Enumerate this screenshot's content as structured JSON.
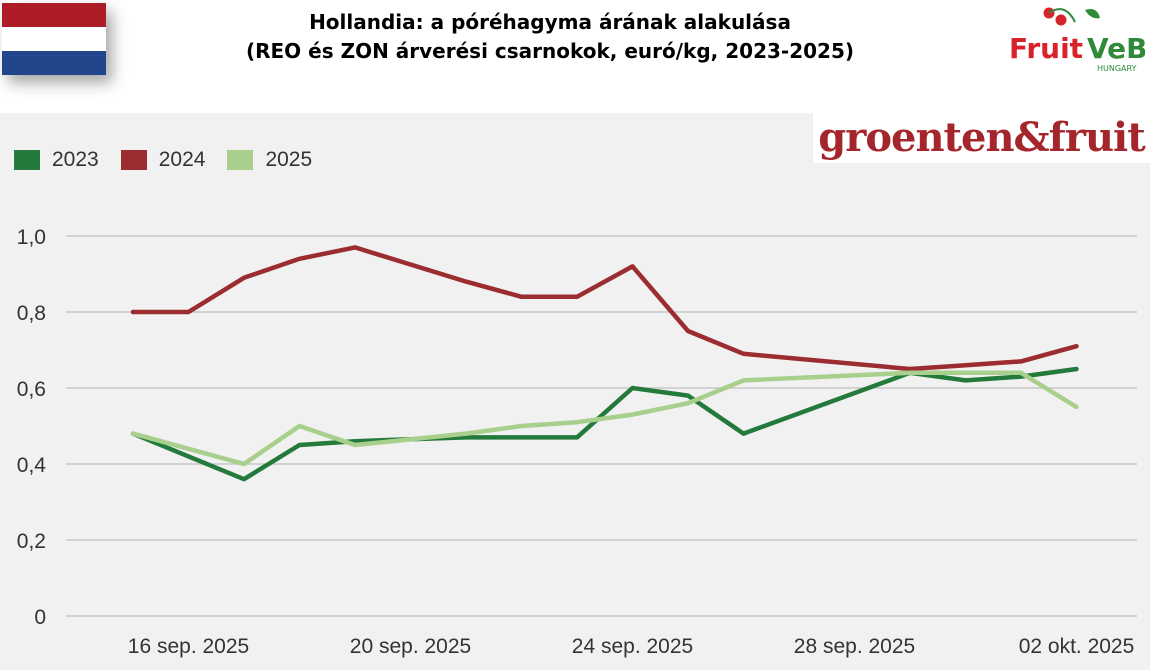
{
  "header": {
    "title_line1": "Hollandia: a póréhagyma árának alakulása",
    "title_line2": "(REO és ZON árverési csarnokok, euró/kg, 2023-2025)"
  },
  "logos": {
    "fruitveb": "FruitVeB",
    "fruitveb_sub": "HUNGARY",
    "groenten": "groenten&fruit"
  },
  "colors": {
    "y2023": "#237a3b",
    "y2024": "#9b2c2f",
    "y2025": "#a8cf8c",
    "flag_red": "#ae1c28",
    "flag_white": "#ffffff",
    "flag_blue": "#21468b"
  },
  "chart_data": {
    "type": "line",
    "title": "Hollandia: a póréhagyma árának alakulása",
    "subtitle": "(REO és ZON árverési csarnokok, euró/kg, 2023-2025)",
    "ylim": [
      0,
      1.0
    ],
    "yticks": [
      "0",
      "0,2",
      "0,4",
      "0,6",
      "0,8",
      "1,0"
    ],
    "ytick_values": [
      0,
      0.2,
      0.4,
      0.6,
      0.8,
      1.0
    ],
    "x": [
      "15 sep.",
      "16 sep.",
      "17 sep.",
      "18 sep.",
      "19 sep.",
      "21 sep.",
      "22 sep.",
      "23 sep.",
      "24 sep.",
      "25 sep.",
      "26 sep.",
      "29 sep.",
      "30 sep.",
      "01 okt.",
      "02 okt."
    ],
    "xtick_labels": [
      "16 sep. 2025",
      "20 sep. 2025",
      "24 sep. 2025",
      "28 sep. 2025",
      "02 okt. 2025"
    ],
    "legend_position": "top-left",
    "grid": true,
    "series": [
      {
        "name": "2023",
        "values": [
          0.48,
          0.42,
          0.36,
          0.45,
          0.46,
          0.47,
          0.47,
          0.47,
          0.6,
          0.58,
          0.48,
          0.64,
          0.62,
          0.63,
          0.65
        ]
      },
      {
        "name": "2024",
        "values": [
          0.8,
          0.8,
          0.89,
          0.94,
          0.97,
          0.88,
          0.84,
          0.84,
          0.92,
          0.75,
          0.69,
          0.65,
          0.66,
          0.67,
          0.71
        ]
      },
      {
        "name": "2025",
        "values": [
          0.48,
          0.44,
          0.4,
          0.5,
          0.45,
          0.48,
          0.5,
          0.51,
          0.53,
          0.56,
          0.62,
          0.64,
          0.64,
          0.64,
          0.55
        ]
      }
    ]
  }
}
